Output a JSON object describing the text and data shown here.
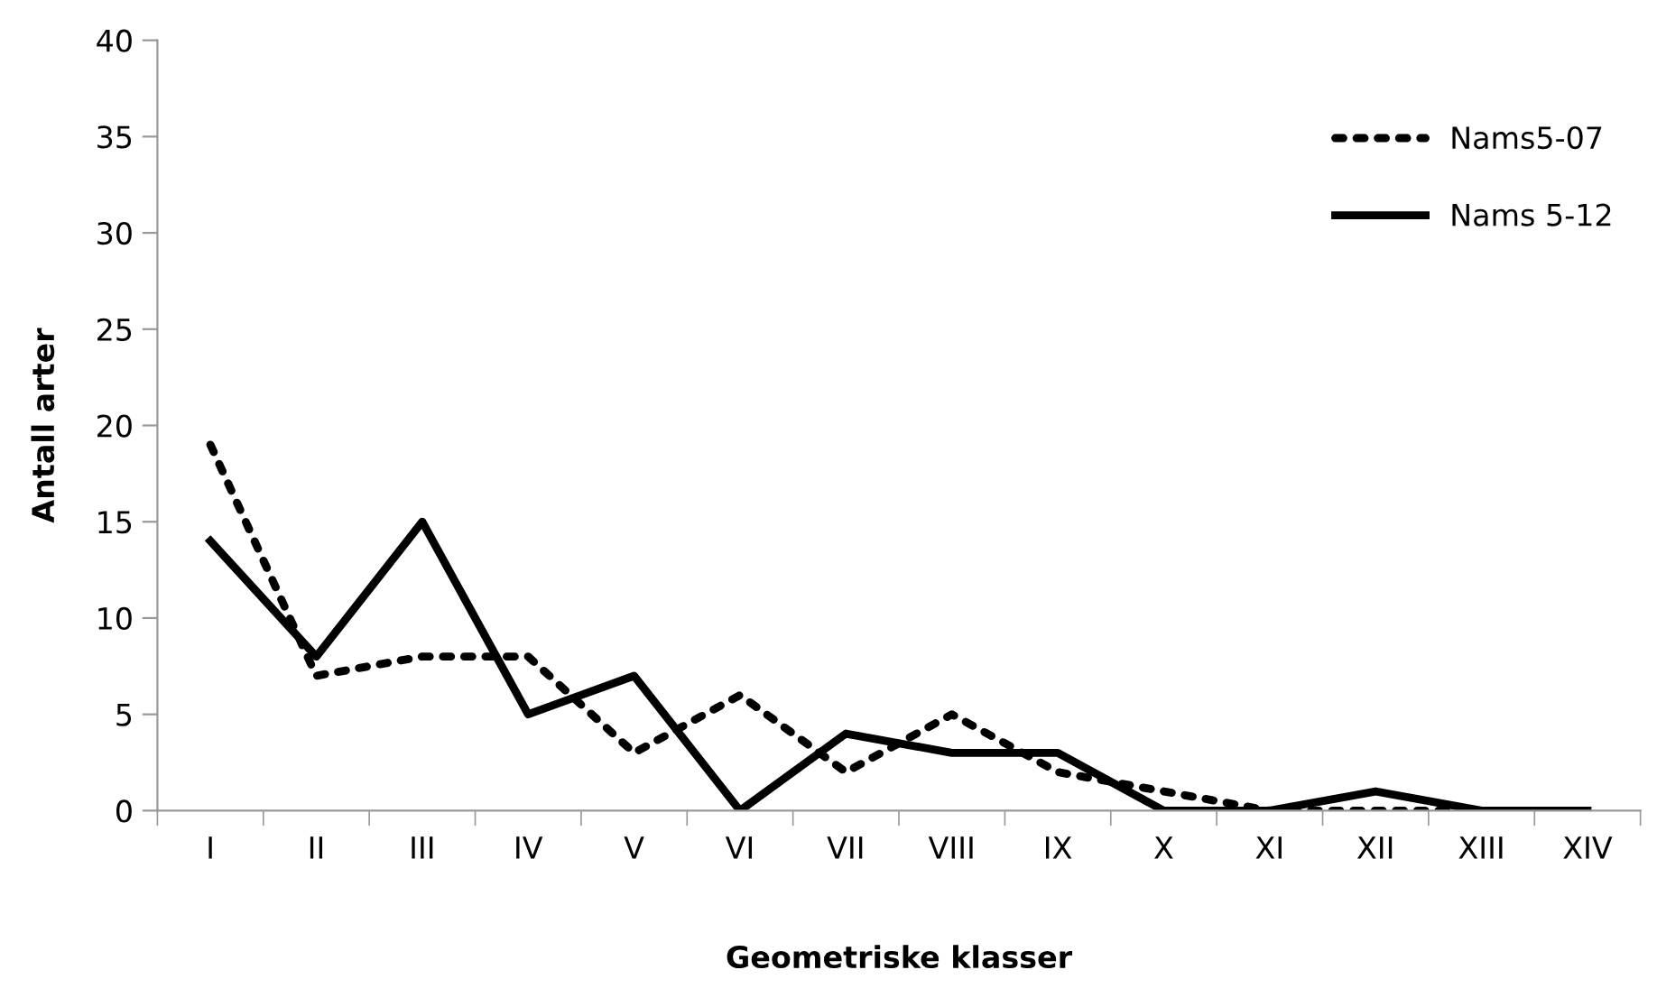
{
  "chart_data": {
    "type": "line",
    "xlabel": "Geometriske klasser",
    "ylabel": "Antall arter",
    "categories": [
      "I",
      "II",
      "III",
      "IV",
      "V",
      "VI",
      "VII",
      "VIII",
      "IX",
      "X",
      "XI",
      "XII",
      "XIII",
      "XIV"
    ],
    "series": [
      {
        "name": "Nams5-07",
        "color": "#000000",
        "line_style": "dotted",
        "values": [
          19,
          7,
          8,
          8,
          3,
          6,
          2,
          5,
          2,
          1,
          0,
          0,
          0,
          0
        ]
      },
      {
        "name": "Nams 5-12",
        "color": "#000000",
        "line_style": "solid",
        "values": [
          14,
          8,
          15,
          5,
          7,
          0,
          4,
          3,
          3,
          0,
          0,
          1,
          0,
          0
        ]
      }
    ],
    "ylim": [
      0,
      40
    ],
    "yticks": [
      0,
      5,
      10,
      15,
      20,
      25,
      30,
      35,
      40
    ],
    "legend": "right",
    "marker": "none"
  }
}
